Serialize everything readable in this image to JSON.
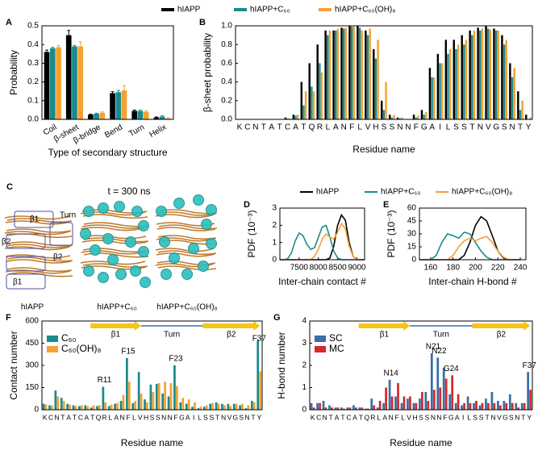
{
  "chart_data": [
    {
      "panel": "A",
      "type": "bar",
      "xlabel": "Type of secondary structure",
      "ylabel": "Probability",
      "categories": [
        "Coil",
        "β-sheet",
        "β-bridge",
        "Bend",
        "Turn",
        "Helix"
      ],
      "series": [
        {
          "name": "hIAPP",
          "color": "#000000",
          "values": [
            0.36,
            0.45,
            0.025,
            0.14,
            0.045,
            0.01
          ],
          "errors": [
            0.01,
            0.025,
            0.003,
            0.008,
            0.005,
            0.003
          ]
        },
        {
          "name": "hIAPP+C₆₀",
          "color": "#1a8a8a",
          "values": [
            0.38,
            0.39,
            0.03,
            0.145,
            0.045,
            0.015
          ],
          "errors": [
            0.005,
            0.005,
            0.003,
            0.01,
            0.005,
            0.005
          ]
        },
        {
          "name": "hIAPP+C₆₀(OH)₈",
          "color": "#f5a033",
          "values": [
            0.385,
            0.39,
            0.035,
            0.155,
            0.04,
            0.005
          ],
          "errors": [
            0.01,
            0.025,
            0.005,
            0.025,
            0.005,
            0.003
          ]
        }
      ],
      "ylim": [
        0,
        0.5
      ],
      "yticks": [
        {
          "value": 0,
          "label": "0.0"
        },
        0.1,
        0.2,
        0.3,
        0.4,
        0.5
      ]
    },
    {
      "panel": "B",
      "type": "bar",
      "xlabel": "Residue name",
      "ylabel": "β-sheet probability",
      "categories": [
        "K",
        "C",
        "N",
        "T",
        "A",
        "T",
        "C",
        "A",
        "T",
        "Q",
        "R",
        "L",
        "A",
        "N",
        "F",
        "L",
        "V",
        "H",
        "S",
        "S",
        "N",
        "N",
        "F",
        "G",
        "A",
        "I",
        "L",
        "S",
        "S",
        "T",
        "N",
        "V",
        "G",
        "S",
        "N",
        "T",
        "Y"
      ],
      "series": [
        {
          "color": "#000000",
          "values": [
            0,
            0,
            0,
            0,
            0,
            0,
            0.02,
            0.05,
            0.4,
            0.6,
            0.8,
            0.95,
            0.95,
            0.98,
            1.0,
            1.0,
            0.95,
            0.75,
            0.2,
            0.05,
            0.02,
            0,
            0.05,
            0.1,
            0.55,
            0.7,
            0.85,
            0.85,
            0.9,
            0.95,
            0.98,
            1.0,
            0.97,
            0.9,
            0.6,
            0.3,
            0.05
          ]
        },
        {
          "color": "#1a8a8a",
          "values": [
            0,
            0,
            0,
            0,
            0,
            0,
            0.01,
            0.04,
            0.15,
            0.35,
            0.6,
            0.9,
            0.95,
            0.97,
            0.99,
            0.98,
            0.9,
            0.65,
            0.1,
            0.02,
            0.01,
            0,
            0.02,
            0.05,
            0.45,
            0.6,
            0.7,
            0.75,
            0.8,
            0.9,
            0.95,
            0.97,
            0.95,
            0.8,
            0.45,
            0.1,
            0
          ]
        },
        {
          "color": "#f5a033",
          "values": [
            0,
            0,
            0,
            0,
            0,
            0,
            0.01,
            0.05,
            0.3,
            0.3,
            0.5,
            0.95,
            0.97,
            0.98,
            0.99,
            0.95,
            0.97,
            0.85,
            0.4,
            0.05,
            0.02,
            0,
            0.04,
            0.08,
            0.45,
            0.6,
            0.75,
            0.8,
            0.85,
            0.95,
            0.97,
            0.96,
            0.95,
            0.85,
            0.55,
            0.2,
            0.02
          ]
        }
      ],
      "ylim": [
        0,
        1
      ],
      "yticks": [
        {
          "value": 0,
          "label": "0.0"
        },
        0.2,
        0.4,
        0.6,
        0.8,
        {
          "value": 1,
          "label": "1.0"
        }
      ]
    },
    {
      "panel": "D",
      "type": "line",
      "xlabel": "Inter-chain contact #",
      "ylabel": "PDF (10⁻³)",
      "x": [
        7000,
        7100,
        7200,
        7300,
        7400,
        7500,
        7600,
        7700,
        7800,
        7900,
        8000,
        8100,
        8200,
        8300,
        8400,
        8500,
        8600,
        8700,
        8800,
        8900,
        9000,
        9100,
        9200
      ],
      "series": [
        {
          "name": "hIAPP",
          "color": "#000000",
          "values": [
            0,
            0,
            0,
            0,
            0,
            0,
            0,
            0,
            0,
            0,
            0,
            0,
            0,
            0.1,
            0.8,
            2.0,
            2.6,
            2.3,
            1.0,
            0.2,
            0,
            0,
            0
          ]
        },
        {
          "name": "hIAPP+C₆₀",
          "color": "#1a8a8a",
          "values": [
            0,
            0,
            0.05,
            0.4,
            1.1,
            1.55,
            1.4,
            0.9,
            0.6,
            0.7,
            1.3,
            1.9,
            2.0,
            1.3,
            0.5,
            0.1,
            0,
            0,
            0,
            0,
            0,
            0,
            0
          ]
        },
        {
          "name": "hIAPP+C₆₀(OH)₈",
          "color": "#f5a033",
          "values": [
            0,
            0,
            0,
            0,
            0,
            0,
            0,
            0,
            0,
            0.2,
            0.6,
            1.2,
            1.5,
            1.3,
            1.2,
            1.6,
            2.1,
            1.8,
            0.8,
            0.2,
            0,
            0,
            0
          ]
        }
      ],
      "xlim": [
        7000,
        9200
      ],
      "xticks": [
        7500,
        8000,
        8500,
        9000
      ],
      "ylim": [
        0,
        3
      ],
      "yticks": [
        0,
        1,
        2,
        3
      ]
    },
    {
      "panel": "E",
      "type": "line",
      "xlabel": "Inter-chain H-bond #",
      "ylabel": "PDF (10⁻³)",
      "x": [
        150,
        155,
        160,
        165,
        170,
        175,
        180,
        185,
        190,
        195,
        200,
        205,
        210,
        215,
        220,
        225,
        230,
        235,
        240
      ],
      "series": [
        {
          "color": "#000000",
          "values": [
            0,
            0,
            0,
            0,
            0,
            0,
            0,
            0,
            5,
            20,
            40,
            50,
            45,
            28,
            10,
            2,
            0,
            0,
            0
          ]
        },
        {
          "color": "#1a8a8a",
          "values": [
            0,
            0,
            0,
            5,
            20,
            30,
            28,
            25,
            32,
            30,
            20,
            10,
            3,
            0,
            0,
            0,
            0,
            0,
            0
          ]
        },
        {
          "color": "#f5a033",
          "values": [
            0,
            0,
            0,
            0,
            0,
            0,
            5,
            15,
            22,
            25,
            22,
            25,
            27,
            20,
            10,
            3,
            0,
            0,
            0
          ]
        }
      ],
      "xlim": [
        150,
        245
      ],
      "xticks": [
        160,
        180,
        200,
        220,
        240
      ],
      "ylim": [
        0,
        60
      ],
      "yticks": [
        0,
        15,
        30,
        45,
        60
      ]
    },
    {
      "panel": "F",
      "type": "bar",
      "xlabel": "Residue name",
      "ylabel": "Contact number",
      "topology": [
        "β1",
        "Turn",
        "β2"
      ],
      "annotations": [
        "R11",
        "F15",
        "F23",
        "F37"
      ],
      "categories": [
        "K",
        "C",
        "N",
        "T",
        "A",
        "T",
        "C",
        "A",
        "T",
        "Q",
        "R",
        "L",
        "A",
        "N",
        "F",
        "L",
        "V",
        "H",
        "S",
        "S",
        "N",
        "N",
        "F",
        "G",
        "A",
        "I",
        "L",
        "S",
        "S",
        "T",
        "N",
        "V",
        "G",
        "S",
        "N",
        "T",
        "Y"
      ],
      "series": [
        {
          "name": "C₆₀",
          "color": "#1a8a8a",
          "values": [
            40,
            30,
            130,
            80,
            40,
            30,
            25,
            30,
            15,
            25,
            155,
            25,
            40,
            60,
            350,
            45,
            255,
            70,
            170,
            175,
            110,
            90,
            300,
            50,
            40,
            20,
            10,
            20,
            40,
            50,
            40,
            40,
            40,
            30,
            10,
            60,
            470
          ]
        },
        {
          "name": "C₆₀(OH)₈",
          "color": "#f5a033",
          "values": [
            35,
            30,
            90,
            60,
            35,
            25,
            30,
            25,
            30,
            30,
            50,
            35,
            45,
            100,
            190,
            60,
            110,
            50,
            120,
            180,
            190,
            180,
            160,
            80,
            70,
            50,
            20,
            30,
            45,
            40,
            30,
            25,
            40,
            40,
            30,
            50,
            260
          ]
        }
      ],
      "ylim": [
        0,
        600
      ],
      "yticks": [
        0,
        150,
        300,
        450,
        600
      ]
    },
    {
      "panel": "G",
      "type": "bar",
      "xlabel": "Residue name",
      "ylabel": "H-bond number",
      "topology": [
        "β1",
        "Turn",
        "β2"
      ],
      "annotations": [
        "N14",
        "N21",
        "N22",
        "G24",
        "F37"
      ],
      "categories": [
        "K",
        "C",
        "N",
        "T",
        "A",
        "T",
        "C",
        "A",
        "T",
        "Q",
        "R",
        "L",
        "A",
        "N",
        "F",
        "L",
        "V",
        "H",
        "S",
        "S",
        "N",
        "N",
        "F",
        "G",
        "A",
        "I",
        "L",
        "S",
        "S",
        "T",
        "N",
        "V",
        "G",
        "S",
        "N",
        "T",
        "Y"
      ],
      "series": [
        {
          "name": "SC",
          "color": "#3b6ea5",
          "values": [
            0.3,
            0.3,
            0.4,
            0.2,
            0.1,
            0.1,
            0.1,
            0.2,
            0.1,
            0.05,
            0.5,
            0.1,
            0.3,
            1.35,
            0.6,
            0.3,
            0.5,
            0.3,
            0.5,
            0.8,
            2.55,
            2.35,
            1.9,
            0.7,
            0.3,
            0.2,
            0.6,
            0.3,
            0.2,
            0.5,
            0.8,
            0.4,
            0.4,
            0.7,
            0.3,
            0.3,
            1.7
          ]
        },
        {
          "name": "MC",
          "color": "#d42a2a",
          "values": [
            0.1,
            0.3,
            0.1,
            0.1,
            0.1,
            0.05,
            0.1,
            0.1,
            0.1,
            0.05,
            0.2,
            0.4,
            1.0,
            0.6,
            1.2,
            0.6,
            0.6,
            0.3,
            0.8,
            0.4,
            0.9,
            1.0,
            1.4,
            1.55,
            0.7,
            0.3,
            0.3,
            0.4,
            0.3,
            0.3,
            0.3,
            0.2,
            0.3,
            0.3,
            0.1,
            0.3,
            0.9
          ]
        }
      ],
      "ylim": [
        0,
        4
      ],
      "yticks": [
        0,
        1,
        2,
        3,
        4
      ]
    }
  ],
  "panel_c": {
    "panel": "C",
    "title": "t = 300 ns",
    "labels": [
      "β1",
      "Turn",
      "β2",
      "β2",
      "β1"
    ],
    "captions": [
      "hIAPP",
      "hIAPP+C₆₀",
      "hIAPP+C₆₀(OH)₈"
    ]
  }
}
